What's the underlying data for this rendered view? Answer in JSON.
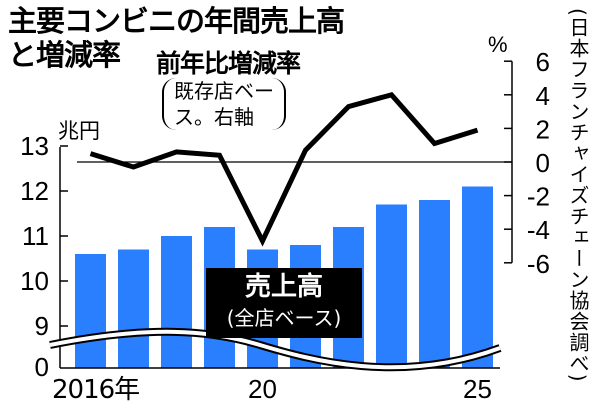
{
  "title": {
    "line1": "主要コンビニの年間売上高",
    "line2": "と増減率"
  },
  "line_label": {
    "title": "前年比増減率",
    "note_line1": "既存店ベー",
    "note_line2": "ス。右軸"
  },
  "bar_label": {
    "title": "売上高",
    "note": "(全店ベース)"
  },
  "source": "(日本フランチャイズチェーン協会調べ)",
  "left_axis": {
    "unit": "兆円",
    "ticks": [
      "13",
      "12",
      "11",
      "10",
      "9",
      "0"
    ]
  },
  "right_axis": {
    "unit": "%",
    "ticks": [
      "6",
      "4",
      "2",
      "0",
      "-2",
      "-4",
      "-6"
    ]
  },
  "x_axis": {
    "labels": [
      "2016年",
      "20",
      "25"
    ]
  },
  "colors": {
    "bar": "#2a7fff",
    "line": "#000000",
    "legend_bg": "#000000"
  },
  "chart_data": {
    "type": "bar+line",
    "title": "主要コンビニの年間売上高と増減率",
    "x": [
      2016,
      2017,
      2018,
      2019,
      2020,
      2021,
      2022,
      2023,
      2024,
      2025
    ],
    "x_tick_labels": [
      "2016年",
      "20",
      "25"
    ],
    "series": [
      {
        "name": "売上高(全店ベース)",
        "type": "bar",
        "axis": "left",
        "unit": "兆円",
        "values": [
          10.6,
          10.7,
          11.0,
          11.2,
          10.7,
          10.8,
          11.2,
          11.7,
          11.8,
          12.1
        ]
      },
      {
        "name": "前年比増減率(既存店ベース。右軸)",
        "type": "line",
        "axis": "right",
        "unit": "%",
        "values": [
          0.5,
          -0.3,
          0.6,
          0.4,
          -4.7,
          0.7,
          3.3,
          4.0,
          1.1,
          1.9
        ]
      }
    ],
    "left_axis": {
      "label": "兆円",
      "ticks": [
        0,
        9,
        10,
        11,
        12,
        13
      ],
      "broken": true,
      "ylim": [
        0,
        13
      ]
    },
    "right_axis": {
      "label": "%",
      "ticks": [
        -6,
        -4,
        -2,
        0,
        2,
        4,
        6
      ],
      "ylim": [
        -6,
        6
      ]
    },
    "legend": [
      "売上高(全店ベース)",
      "前年比増減率(既存店ベース。右軸)"
    ],
    "source": "日本フランチャイズチェーン協会調べ",
    "grid": false
  }
}
